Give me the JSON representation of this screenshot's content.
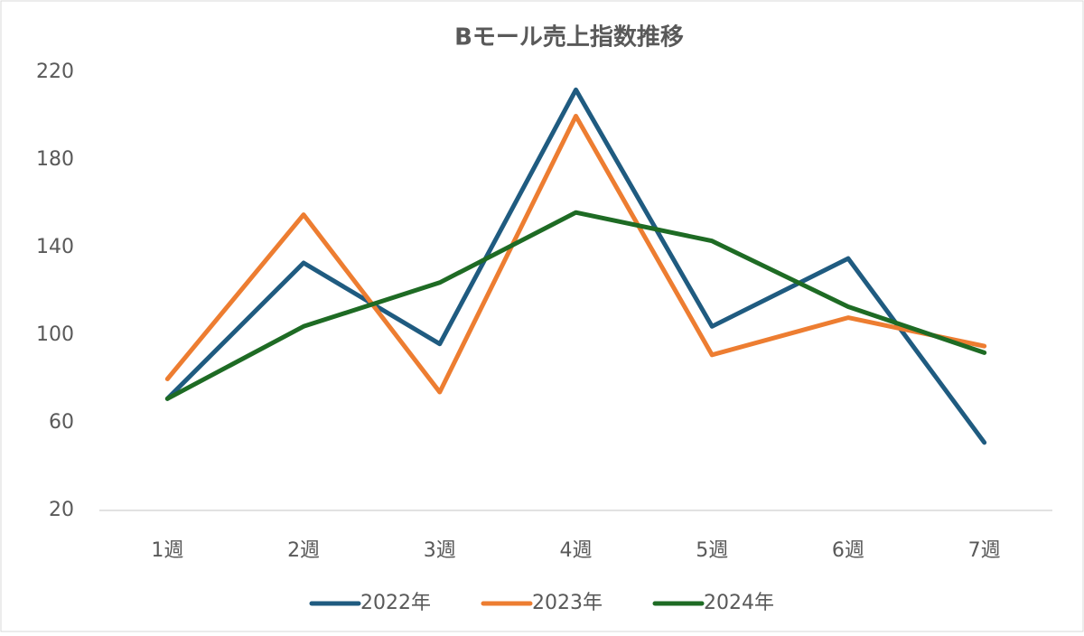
{
  "chart_data": {
    "type": "line",
    "title": "Bモール売上指数推移",
    "categories": [
      "1週",
      "2週",
      "3週",
      "4週",
      "5週",
      "6週",
      "7週"
    ],
    "series": [
      {
        "name": "2022年",
        "color": "#1f5b80",
        "values": [
          71,
          133,
          96,
          212,
          104,
          135,
          51
        ]
      },
      {
        "name": "2023年",
        "color": "#ed7d31",
        "values": [
          80,
          155,
          74,
          200,
          91,
          108,
          95
        ]
      },
      {
        "name": "2024年",
        "color": "#1e6b24",
        "values": [
          71,
          104,
          124,
          156,
          143,
          113,
          92
        ]
      }
    ],
    "ylim": [
      20,
      220
    ],
    "yticks": [
      20,
      60,
      100,
      140,
      180,
      220
    ],
    "grid": false,
    "legend": "bottom"
  }
}
